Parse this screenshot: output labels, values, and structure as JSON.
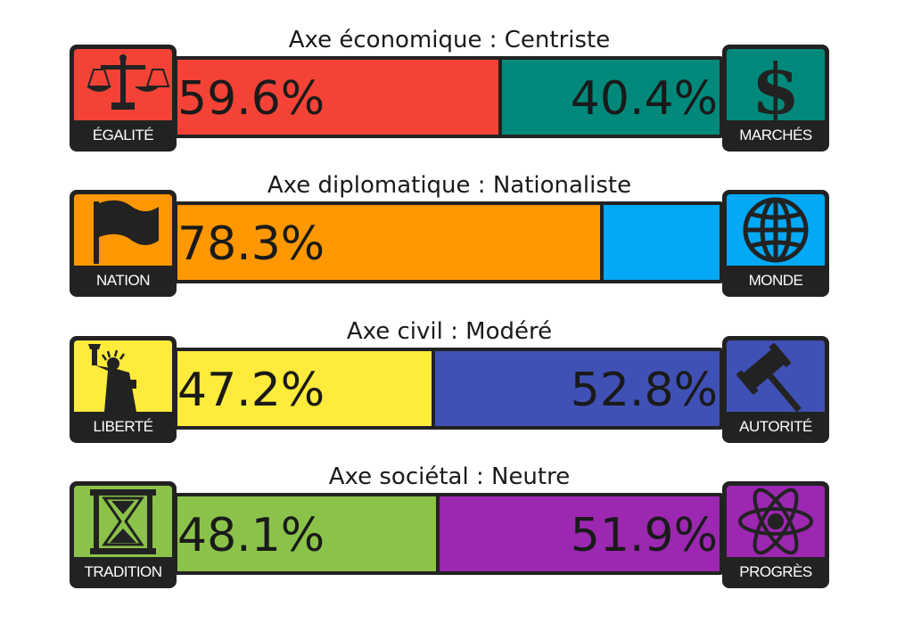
{
  "chart_data": {
    "type": "bar",
    "axes": [
      {
        "title": "Axe économique : Centriste",
        "left": {
          "label": "ÉGALITÉ",
          "icon": "scales-icon",
          "value": 59.6,
          "text": "59.6%",
          "color": "#f44336"
        },
        "right": {
          "label": "MARCHÉS",
          "icon": "dollar-icon",
          "value": 40.4,
          "text": "40.4%",
          "color": "#00897b"
        }
      },
      {
        "title": "Axe diplomatique : Nationaliste",
        "left": {
          "label": "NATION",
          "icon": "flag-icon",
          "value": 78.3,
          "text": "78.3%",
          "color": "#ff9800"
        },
        "right": {
          "label": "MONDE",
          "icon": "globe-icon",
          "value": 21.7,
          "text": "",
          "color": "#03a9f4"
        }
      },
      {
        "title": "Axe civil : Modéré",
        "left": {
          "label": "LIBERTÉ",
          "icon": "liberty-statue-icon",
          "value": 47.2,
          "text": "47.2%",
          "color": "#ffeb3b"
        },
        "right": {
          "label": "AUTORITÉ",
          "icon": "gavel-icon",
          "value": 52.8,
          "text": "52.8%",
          "color": "#3f51b5"
        }
      },
      {
        "title": "Axe sociétal : Neutre",
        "left": {
          "label": "TRADITION",
          "icon": "hourglass-icon",
          "value": 48.1,
          "text": "48.1%",
          "color": "#8bc34a"
        },
        "right": {
          "label": "PROGRÈS",
          "icon": "atom-icon",
          "value": 51.9,
          "text": "51.9%",
          "color": "#9c27b0"
        }
      }
    ]
  }
}
